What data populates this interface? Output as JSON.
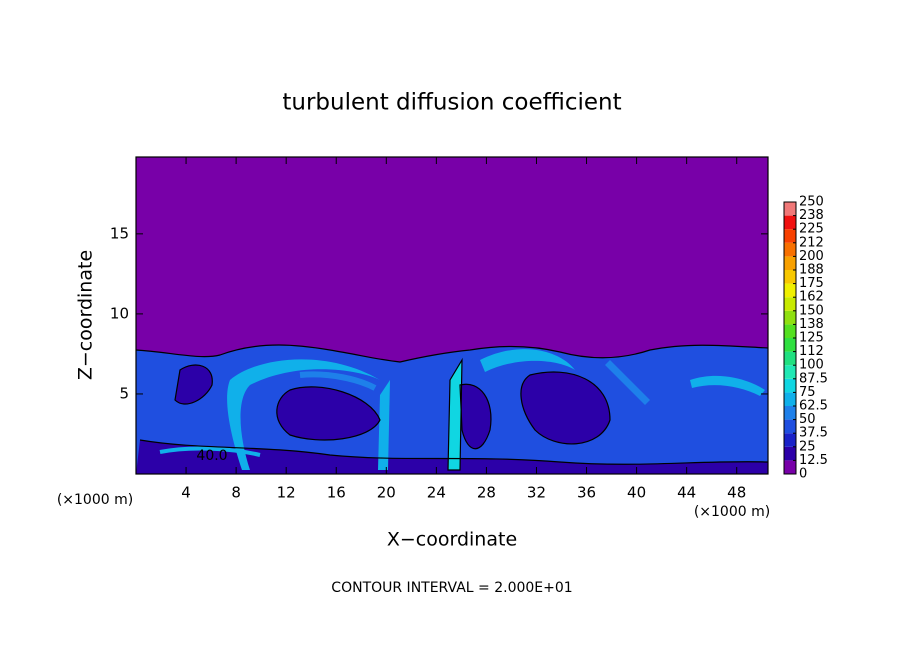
{
  "chart_data": {
    "type": "contour",
    "title": "turbulent diffusion coefficient",
    "xlabel": "X−coordinate",
    "ylabel": "Z−coordinate",
    "x_unit": "(×1000 m)",
    "footer": "CONTOUR INTERVAL = 2.000E+01",
    "annotations": [
      "40.0"
    ],
    "xlim": [
      0,
      50.5
    ],
    "ylim": [
      0,
      19.8
    ],
    "xticks": [
      4,
      8,
      12,
      16,
      20,
      24,
      28,
      32,
      36,
      40,
      44,
      48
    ],
    "yticks": [
      5,
      10,
      15
    ],
    "colorbar": {
      "ticks": [
        0,
        {
          "value": 12.5,
          "label": "12.5"
        },
        25,
        {
          "value": 37.5,
          "label": "37.5"
        },
        50,
        {
          "value": 62.5,
          "label": "62.5"
        },
        75,
        {
          "value": 87.5,
          "label": "87.5"
        },
        100,
        {
          "value": 112.5,
          "label": "112"
        },
        125,
        {
          "value": 137.5,
          "label": "138"
        },
        150,
        {
          "value": 162.5,
          "label": "162"
        },
        175,
        {
          "value": 187.5,
          "label": "188"
        },
        200,
        {
          "value": 212.5,
          "label": "212"
        },
        225,
        {
          "value": 237.5,
          "label": "238"
        },
        250
      ],
      "colors": [
        "#7800a8",
        "#2c00a8",
        "#1a22c8",
        "#1f4fe0",
        "#1e80ea",
        "#10b0ea",
        "#10d6e2",
        "#20e8b4",
        "#20e080",
        "#30e040",
        "#54e020",
        "#90e010",
        "#c8ea00",
        "#f0f000",
        "#f8c800",
        "#f8a000",
        "#f87000",
        "#f84000",
        "#f01010",
        "#f07878"
      ]
    }
  }
}
